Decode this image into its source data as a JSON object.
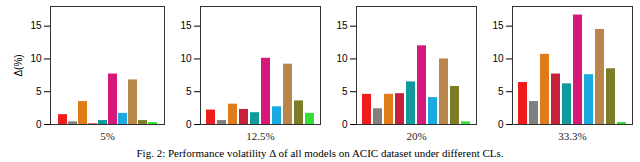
{
  "caption": "Fig. 2: Performance volatility Δ of all models on ACIC dataset under different CLs.",
  "chart_data": [
    {
      "type": "bar",
      "xlabel": "5%",
      "ylabel": "Δ(%)",
      "categories": [
        null,
        null,
        null,
        null,
        null,
        null,
        null,
        null,
        null,
        null
      ],
      "values": [
        1.5,
        0.4,
        3.5,
        0.1,
        0.6,
        7.7,
        1.7,
        6.8,
        0.6,
        0.3
      ],
      "colors": [
        "#ee1c1c",
        "#808080",
        "#e07b1a",
        "#c8203c",
        "#0f9b9b",
        "#d6187a",
        "#1aa9e0",
        "#b8864b",
        "#7d7d28",
        "#33e033"
      ],
      "ylim": [
        0,
        18
      ],
      "yticks": [
        0,
        5,
        10,
        15
      ],
      "tick_labels": "y"
    },
    {
      "type": "bar",
      "xlabel": "12.5%",
      "categories": [
        null,
        null,
        null,
        null,
        null,
        null,
        null,
        null,
        null,
        null
      ],
      "values": [
        2.2,
        0.6,
        3.1,
        2.3,
        1.8,
        10.1,
        2.7,
        9.2,
        3.6,
        1.7
      ],
      "colors": [
        "#ee1c1c",
        "#808080",
        "#e07b1a",
        "#c8203c",
        "#0f9b9b",
        "#d6187a",
        "#1aa9e0",
        "#b8864b",
        "#7d7d28",
        "#33e033"
      ],
      "ylim": [
        0,
        18
      ],
      "yticks": [
        0,
        5,
        10,
        15
      ],
      "tick_labels": "y"
    },
    {
      "type": "bar",
      "xlabel": "20%",
      "categories": [
        null,
        null,
        null,
        null,
        null,
        null,
        null,
        null,
        null,
        null
      ],
      "values": [
        4.6,
        2.4,
        4.6,
        4.7,
        6.5,
        12.0,
        4.1,
        10.0,
        5.8,
        0.4
      ],
      "colors": [
        "#ee1c1c",
        "#808080",
        "#e07b1a",
        "#c8203c",
        "#0f9b9b",
        "#d6187a",
        "#1aa9e0",
        "#b8864b",
        "#7d7d28",
        "#33e033"
      ],
      "ylim": [
        0,
        18
      ],
      "yticks": [
        0,
        5,
        10,
        15
      ],
      "tick_labels": "y"
    },
    {
      "type": "bar",
      "xlabel": "33.3%",
      "categories": [
        null,
        null,
        null,
        null,
        null,
        null,
        null,
        null,
        null,
        null
      ],
      "values": [
        6.4,
        3.5,
        10.7,
        7.7,
        6.2,
        16.7,
        7.6,
        14.5,
        8.5,
        0.3
      ],
      "colors": [
        "#ee1c1c",
        "#808080",
        "#e07b1a",
        "#c8203c",
        "#0f9b9b",
        "#d6187a",
        "#1aa9e0",
        "#b8864b",
        "#7d7d28",
        "#33e033"
      ],
      "ylim": [
        0,
        18
      ],
      "yticks": [
        0,
        5,
        10,
        15
      ],
      "tick_labels": "y"
    }
  ]
}
